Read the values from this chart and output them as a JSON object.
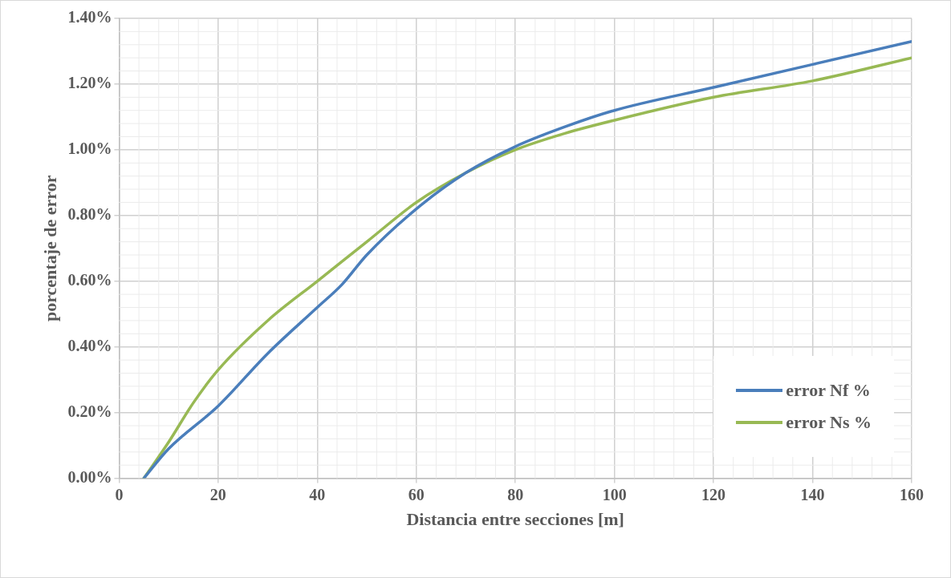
{
  "chart_data": {
    "type": "line",
    "xlabel": "Distancia entre secciones [m]",
    "ylabel": "porcentaje de error",
    "x": [
      5,
      10,
      20,
      30,
      40,
      45,
      50,
      60,
      70,
      80,
      90,
      100,
      120,
      140,
      160
    ],
    "series": [
      {
        "name": "error Nf %",
        "color": "#4a7ebb",
        "values": [
          0,
          0.09,
          0.22,
          0.38,
          0.52,
          0.59,
          0.68,
          0.82,
          0.93,
          1.01,
          1.07,
          1.12,
          1.19,
          1.26,
          1.33
        ]
      },
      {
        "name": "error Ns %",
        "color": "#98b954",
        "x": [
          5,
          10,
          15,
          20,
          30,
          40,
          50,
          60,
          70,
          80,
          90,
          100,
          120,
          140,
          160
        ],
        "values": [
          0,
          0.11,
          0.23,
          0.33,
          0.48,
          0.6,
          0.72,
          0.84,
          0.93,
          1.0,
          1.05,
          1.09,
          1.16,
          1.21,
          1.28
        ]
      }
    ],
    "xlim": [
      0,
      160
    ],
    "xticks": [
      0,
      20,
      40,
      60,
      80,
      100,
      120,
      140,
      160
    ],
    "ylim": [
      0,
      1.4
    ],
    "yticks": [
      {
        "value": 0,
        "label": "0.00%"
      },
      {
        "value": 0.2,
        "label": "0.20%"
      },
      {
        "value": 0.4,
        "label": "0.40%"
      },
      {
        "value": 0.6,
        "label": "0.60%"
      },
      {
        "value": 0.8,
        "label": "0.80%"
      },
      {
        "value": 1.0,
        "label": "1.00%"
      },
      {
        "value": 1.2,
        "label": "1.20%"
      },
      {
        "value": 1.4,
        "label": "1.40%"
      }
    ],
    "grid": true,
    "legend": "bottom right",
    "marker": "none",
    "line_style": "solid"
  }
}
